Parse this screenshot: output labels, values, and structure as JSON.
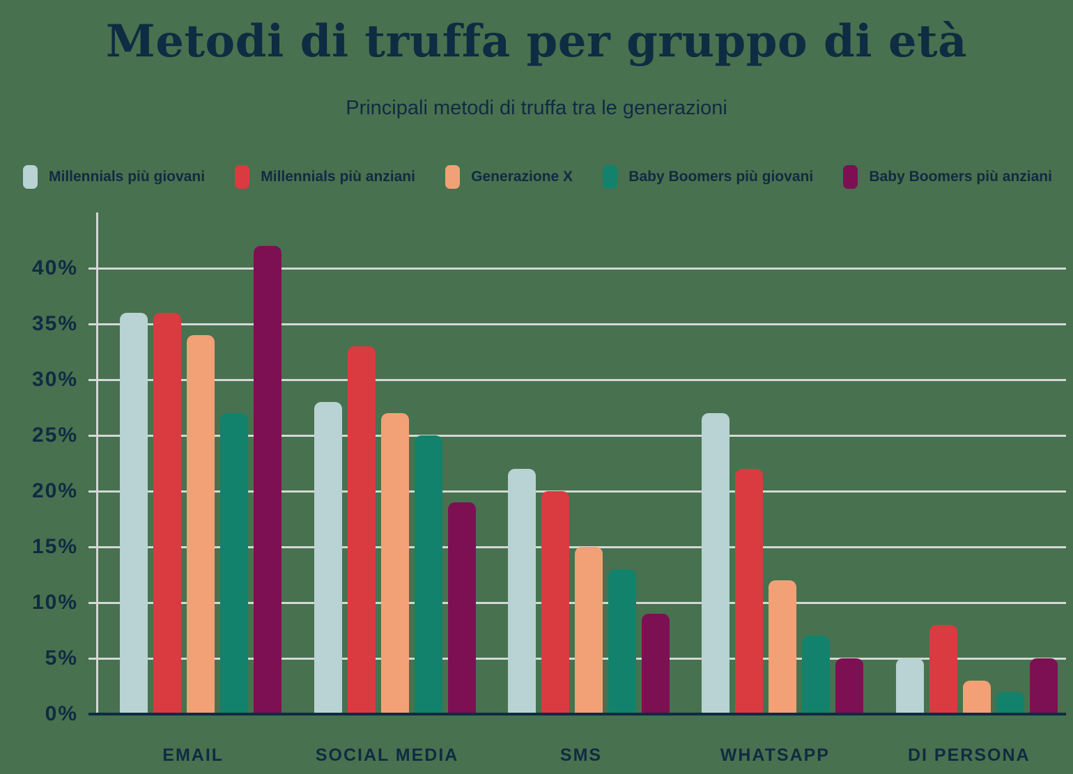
{
  "title": "Metodi di truffa per gruppo di età",
  "subtitle": "Principali metodi di truffa tra le generazioni",
  "colors": {
    "background": "#48714f",
    "text": "#0e2c42",
    "gridline": "#d5d8d7",
    "axis_baseline": "#0e2c42"
  },
  "chart_data": {
    "type": "bar",
    "title": "Metodi di truffa per gruppo di età",
    "subtitle": "Principali metodi di truffa tra le generazioni",
    "categories": [
      "EMAIL",
      "SOCIAL MEDIA",
      "SMS",
      "WHATSAPP",
      "DI PERSONA"
    ],
    "series": [
      {
        "name": "Millennials più giovani",
        "color": "#b9d2d3",
        "values": [
          36,
          28,
          22,
          27,
          5
        ]
      },
      {
        "name": "Millennials più anziani",
        "color": "#d93b40",
        "values": [
          36,
          33,
          20,
          22,
          8
        ]
      },
      {
        "name": "Generazione X",
        "color": "#f2a176",
        "values": [
          34,
          27,
          15,
          12,
          3
        ]
      },
      {
        "name": "Baby Boomers più giovani",
        "color": "#12826c",
        "values": [
          27,
          25,
          13,
          7,
          2
        ]
      },
      {
        "name": "Baby Boomers più anziani",
        "color": "#7d1053",
        "values": [
          42,
          19,
          9,
          5,
          5
        ]
      }
    ],
    "xlabel": "",
    "ylabel": "",
    "ylim": [
      0,
      45
    ],
    "yticks": [
      "0%",
      "5%",
      "10%",
      "15%",
      "20%",
      "25%",
      "30%",
      "35%",
      "40%"
    ],
    "grid": true,
    "legend_position": "top"
  }
}
